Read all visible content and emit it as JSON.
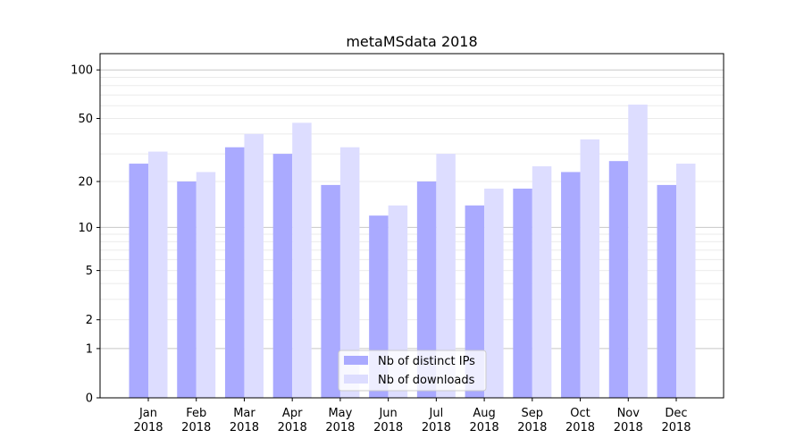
{
  "chart_data": {
    "type": "bar",
    "title": "metaMSdata 2018",
    "xlabel": "",
    "ylabel": "",
    "yscale": "log(x+1)",
    "ylim": [
      0,
      126
    ],
    "yticks": [
      0,
      1,
      2,
      5,
      10,
      20,
      50,
      100
    ],
    "ytick_labels": [
      "0",
      "1",
      "2",
      "5",
      "10",
      "20",
      "50",
      "100"
    ],
    "grid": true,
    "legend_position": "bottom-center",
    "categories": [
      "Jan\n2018",
      "Feb\n2018",
      "Mar\n2018",
      "Apr\n2018",
      "May\n2018",
      "Jun\n2018",
      "Jul\n2018",
      "Aug\n2018",
      "Sep\n2018",
      "Oct\n2018",
      "Nov\n2018",
      "Dec\n2018"
    ],
    "series": [
      {
        "name": "Nb of distinct IPs",
        "color": "#aaaaff",
        "values": [
          26,
          20,
          33,
          30,
          19,
          12,
          20,
          14,
          18,
          23,
          27,
          19
        ]
      },
      {
        "name": "Nb of downloads",
        "color": "#ddddff",
        "values": [
          31,
          23,
          40,
          47,
          33,
          14,
          30,
          18,
          25,
          37,
          61,
          26
        ]
      }
    ]
  }
}
